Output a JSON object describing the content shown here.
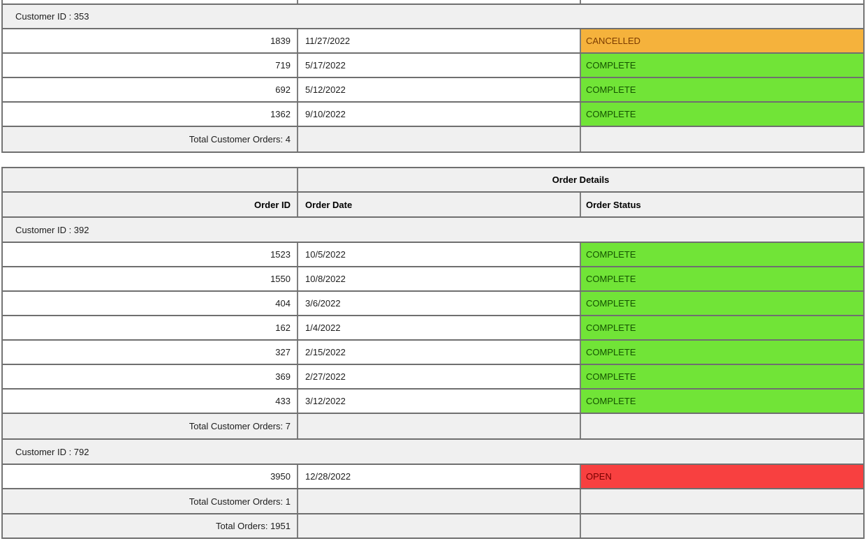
{
  "report": {
    "section_title": "Order Details",
    "columns": {
      "order_id": "Order ID",
      "order_date": "Order Date",
      "order_status": "Order Status"
    },
    "status_colors": {
      "CANCELLED": {
        "bg": "#F5B23C",
        "text": "#7A3B00"
      },
      "COMPLETE": {
        "bg": "#71E437",
        "text": "#145200"
      },
      "OPEN": {
        "bg": "#F84040",
        "text": "#790000"
      }
    },
    "page1": {
      "group": {
        "label": "Customer ID : 353",
        "rows": [
          {
            "order_id": "1839",
            "order_date": "11/27/2022",
            "order_status": "CANCELLED"
          },
          {
            "order_id": "719",
            "order_date": "5/17/2022",
            "order_status": "COMPLETE"
          },
          {
            "order_id": "692",
            "order_date": "5/12/2022",
            "order_status": "COMPLETE"
          },
          {
            "order_id": "1362",
            "order_date": "9/10/2022",
            "order_status": "COMPLETE"
          }
        ],
        "total_label": "Total Customer Orders: 4"
      }
    },
    "page2": {
      "groups": [
        {
          "label": "Customer ID : 392",
          "rows": [
            {
              "order_id": "1523",
              "order_date": "10/5/2022",
              "order_status": "COMPLETE"
            },
            {
              "order_id": "1550",
              "order_date": "10/8/2022",
              "order_status": "COMPLETE"
            },
            {
              "order_id": "404",
              "order_date": "3/6/2022",
              "order_status": "COMPLETE"
            },
            {
              "order_id": "162",
              "order_date": "1/4/2022",
              "order_status": "COMPLETE"
            },
            {
              "order_id": "327",
              "order_date": "2/15/2022",
              "order_status": "COMPLETE"
            },
            {
              "order_id": "369",
              "order_date": "2/27/2022",
              "order_status": "COMPLETE"
            },
            {
              "order_id": "433",
              "order_date": "3/12/2022",
              "order_status": "COMPLETE"
            }
          ],
          "total_label": "Total Customer Orders: 7"
        },
        {
          "label": "Customer ID : 792",
          "rows": [
            {
              "order_id": "3950",
              "order_date": "12/28/2022",
              "order_status": "OPEN"
            }
          ],
          "total_label": "Total Customer Orders: 1"
        }
      ],
      "grand_total_label": "Total Orders: 1951"
    }
  }
}
